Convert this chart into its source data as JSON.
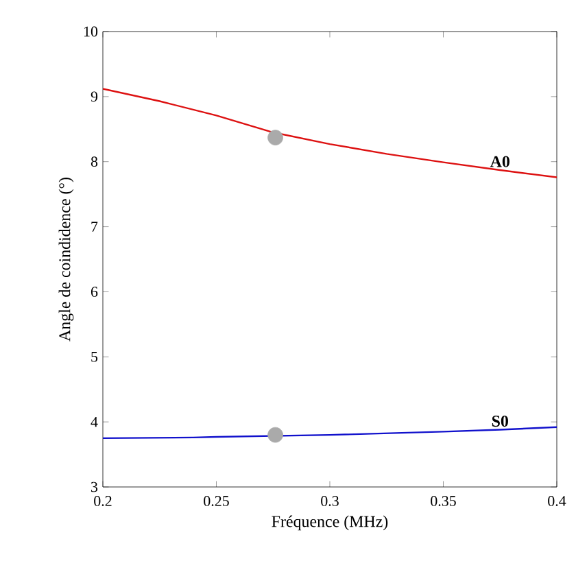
{
  "chart_data": {
    "type": "line",
    "xlabel": "Fréquence (MHz)",
    "ylabel": "Angle de coindidence (°)",
    "xlim": [
      0.2,
      0.4
    ],
    "ylim": [
      3,
      10
    ],
    "xticks": [
      0.2,
      0.25,
      0.3,
      0.35,
      0.4
    ],
    "yticks": [
      3,
      4,
      5,
      6,
      7,
      8,
      9,
      10
    ],
    "grid": false,
    "series": [
      {
        "name": "A0",
        "color": "#dd1111",
        "x": [
          0.2,
          0.225,
          0.25,
          0.275,
          0.3,
          0.325,
          0.35,
          0.375,
          0.4
        ],
        "values": [
          9.12,
          8.93,
          8.71,
          8.45,
          8.27,
          8.12,
          7.99,
          7.87,
          7.76
        ]
      },
      {
        "name": "S0",
        "color": "#1111cc",
        "x": [
          0.2,
          0.24,
          0.25,
          0.3,
          0.35,
          0.375,
          0.4
        ],
        "values": [
          3.75,
          3.76,
          3.77,
          3.8,
          3.85,
          3.88,
          3.92
        ]
      },
      {
        "type": "scatter",
        "color": "#aaaaaa",
        "x": [
          0.276,
          0.276
        ],
        "values": [
          8.37,
          3.8
        ]
      }
    ]
  }
}
